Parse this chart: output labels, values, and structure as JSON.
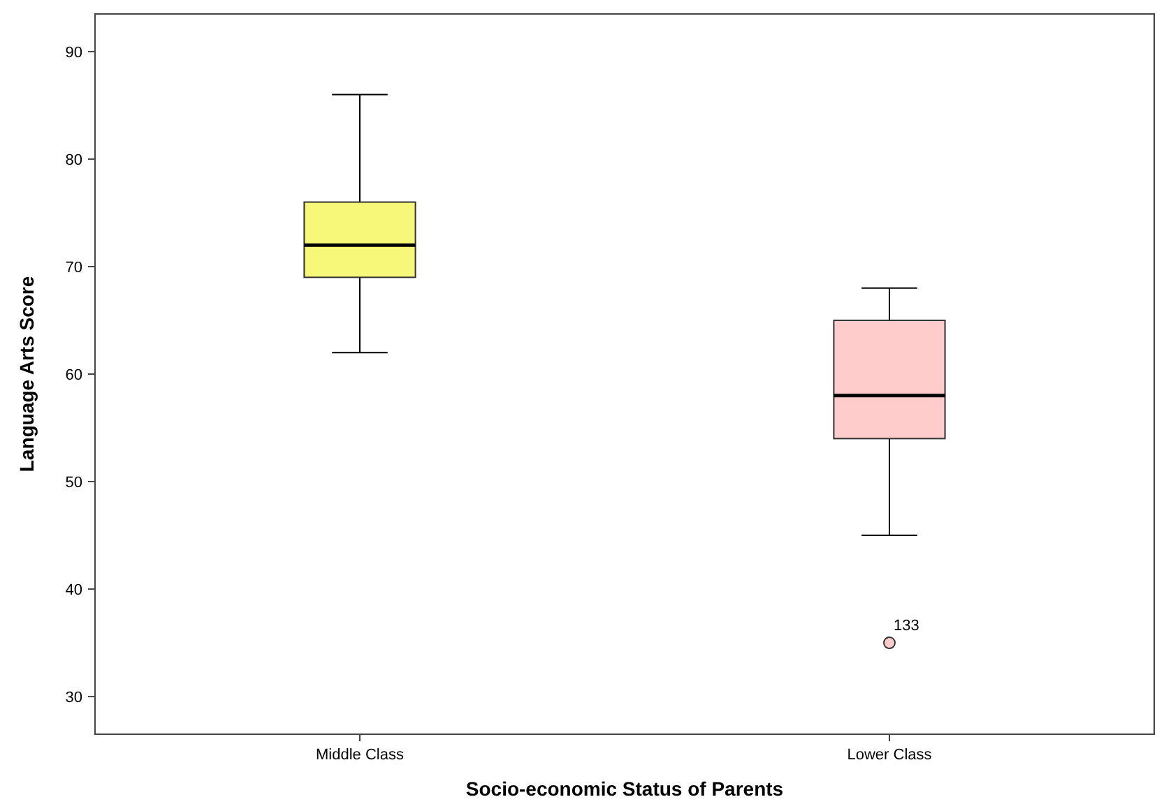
{
  "chart_data": {
    "type": "box",
    "xlabel": "Socio-economic Status of Parents",
    "ylabel": "Language Arts Score",
    "categories": [
      "Middle Class",
      "Lower Class"
    ],
    "boxes": [
      {
        "low": 62,
        "q1": 69,
        "median": 72,
        "q3": 76,
        "high": 86
      },
      {
        "low": 45,
        "q1": 54,
        "median": 58,
        "q3": 65,
        "high": 68,
        "outliers": [
          35
        ]
      }
    ],
    "colors": [
      "#f7f77a",
      "#ffcccc"
    ],
    "ylim": [
      26.5,
      93.5
    ],
    "yticks": [
      30,
      40,
      50,
      60,
      70,
      80,
      90
    ],
    "annotations": [
      "133"
    ],
    "grid": false
  }
}
